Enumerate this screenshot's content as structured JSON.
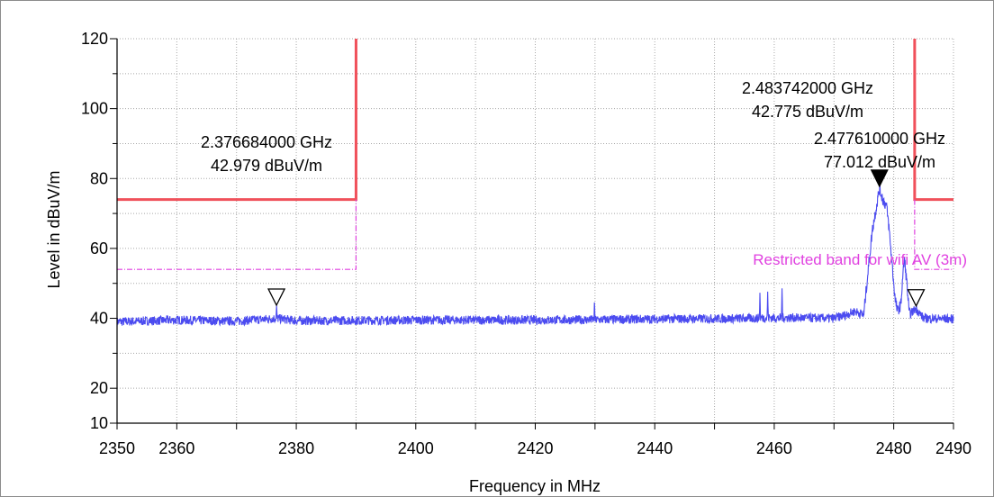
{
  "chart_data": {
    "type": "line",
    "title": "",
    "xlabel": "Frequency in MHz",
    "ylabel": "Level in dBuV/m",
    "xlim": [
      2350,
      2490
    ],
    "ylim": [
      10,
      120
    ],
    "x_ticks": [
      2350,
      2360,
      2380,
      2400,
      2420,
      2440,
      2460,
      2480,
      2490
    ],
    "y_ticks": [
      10,
      20,
      40,
      60,
      80,
      100,
      120
    ],
    "grid": true,
    "legend": "none",
    "colors": {
      "trace": "#4b4bf0",
      "limit": "#f0505a",
      "restricted": "#e040e0",
      "grid": "#a8a8a8"
    },
    "series": [
      {
        "role": "measurement",
        "points": [
          [
            2350,
            39
          ],
          [
            2360,
            39.5
          ],
          [
            2370,
            39.2
          ],
          [
            2376.6,
            40
          ],
          [
            2376.7,
            43
          ],
          [
            2376.8,
            40
          ],
          [
            2380,
            39.3
          ],
          [
            2400,
            39.5
          ],
          [
            2420,
            39.5
          ],
          [
            2429.8,
            39.6
          ],
          [
            2429.9,
            44
          ],
          [
            2430,
            39.6
          ],
          [
            2440,
            39.8
          ],
          [
            2450,
            39.9
          ],
          [
            2457.5,
            40
          ],
          [
            2457.6,
            47
          ],
          [
            2457.7,
            40.2
          ],
          [
            2458.8,
            40
          ],
          [
            2458.9,
            47.5
          ],
          [
            2459,
            40.2
          ],
          [
            2461.2,
            40
          ],
          [
            2461.3,
            48.5
          ],
          [
            2461.4,
            40.2
          ],
          [
            2470,
            40
          ],
          [
            2472,
            41
          ],
          [
            2473.5,
            42
          ],
          [
            2475,
            41
          ],
          [
            2475.2,
            45
          ],
          [
            2475.8,
            55
          ],
          [
            2476.4,
            65
          ],
          [
            2477,
            71
          ],
          [
            2477.6,
            77
          ],
          [
            2478.2,
            74
          ],
          [
            2478.8,
            72
          ],
          [
            2479.2,
            66
          ],
          [
            2479.6,
            58
          ],
          [
            2480.2,
            46
          ],
          [
            2480.6,
            42
          ],
          [
            2481.2,
            44
          ],
          [
            2481.5,
            52
          ],
          [
            2481.8,
            57
          ],
          [
            2482.2,
            50
          ],
          [
            2482.6,
            41
          ],
          [
            2483.7,
            42.8
          ],
          [
            2485,
            40
          ],
          [
            2490,
            39.8
          ]
        ]
      }
    ],
    "limit_lines": [
      {
        "role": "limit",
        "points": [
          [
            2350,
            74
          ],
          [
            2390,
            74
          ],
          [
            2390,
            120
          ]
        ]
      },
      {
        "role": "limit",
        "points": [
          [
            2483.5,
            120
          ],
          [
            2483.5,
            74
          ],
          [
            2490,
            74
          ]
        ]
      },
      {
        "role": "restricted",
        "label": "Restricted band for wifi AV (3m)",
        "points": [
          [
            2350,
            54
          ],
          [
            2390,
            54
          ],
          [
            2390,
            74
          ]
        ]
      },
      {
        "role": "restricted",
        "points": [
          [
            2483.5,
            74
          ],
          [
            2483.5,
            54
          ],
          [
            2490,
            54
          ]
        ]
      }
    ],
    "markers": [
      {
        "freq_text": "2.376684000 GHz",
        "level_text": "42.979 dBuV/m",
        "x": 2376.684,
        "y": 42.979,
        "filled": false
      },
      {
        "freq_text": "2.483742000 GHz",
        "level_text": "42.775 dBuV/m",
        "x": 2483.742,
        "y": 42.775,
        "filled": false
      },
      {
        "freq_text": "2.477610000 GHz",
        "level_text": "77.012 dBuV/m",
        "x": 2477.61,
        "y": 77.012,
        "filled": true
      }
    ]
  }
}
